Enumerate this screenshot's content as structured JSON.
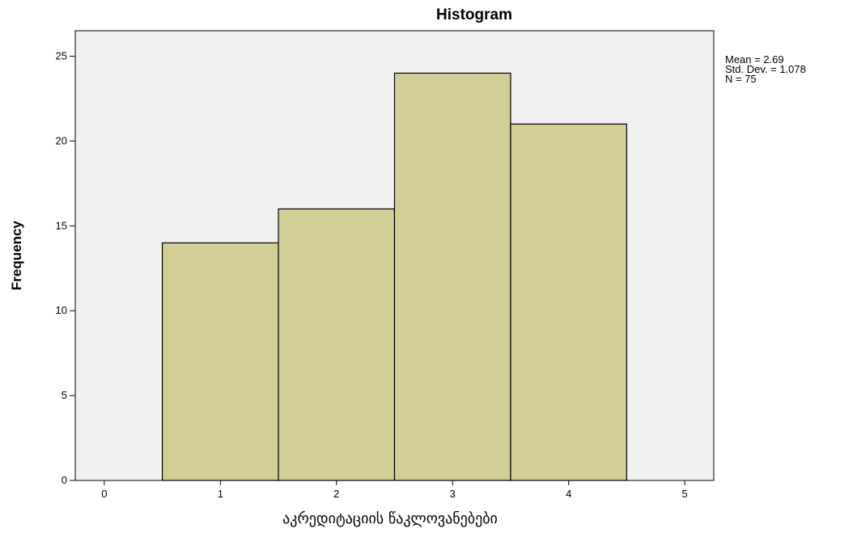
{
  "chart_data": {
    "type": "bar",
    "title": "Histogram",
    "xlabel": "აკრედიტაციის წაკლოვანებები",
    "ylabel": "Frequency",
    "xlim": [
      -0.25,
      5.25
    ],
    "ylim": [
      0,
      26.5
    ],
    "x_ticks": [
      0,
      1,
      2,
      3,
      4,
      5
    ],
    "y_ticks": [
      0,
      5,
      10,
      15,
      20,
      25
    ],
    "bins": [
      {
        "start": 0.5,
        "end": 1.5,
        "value": 14
      },
      {
        "start": 1.5,
        "end": 2.5,
        "value": 16
      },
      {
        "start": 2.5,
        "end": 3.5,
        "value": 24
      },
      {
        "start": 3.5,
        "end": 4.5,
        "value": 21
      }
    ],
    "bar_color": "#d3cd96",
    "bar_edge_color": "#000000",
    "plot_background": "#f0f0f0",
    "grid": false,
    "stats": [
      "Mean = 2.69",
      "Std. Dev. = 1.078",
      "N = 75"
    ],
    "stats_placement": "top-right"
  }
}
